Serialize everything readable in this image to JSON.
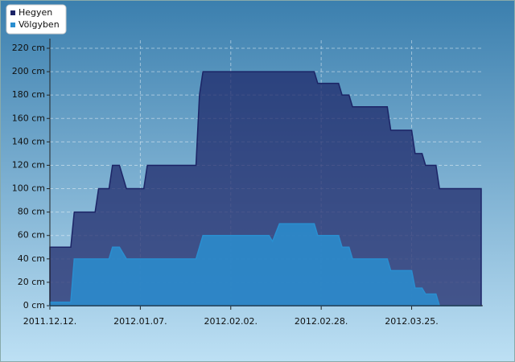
{
  "chart_data": {
    "type": "area",
    "x": [
      "2011.12.12.",
      "2011.12.18.",
      "2011.12.19.",
      "2011.12.25.",
      "2011.12.26.",
      "2011.12.29.",
      "2011.12.30.",
      "2012.01.01.",
      "2012.01.03.",
      "2012.01.08.",
      "2012.01.09.",
      "2012.01.23.",
      "2012.01.24.",
      "2012.01.25.",
      "2012.02.13.",
      "2012.02.14.",
      "2012.02.16.",
      "2012.02.26.",
      "2012.02.27.",
      "2012.03.04.",
      "2012.03.05.",
      "2012.03.07.",
      "2012.03.08.",
      "2012.03.18.",
      "2012.03.19.",
      "2012.03.25.",
      "2012.03.26.",
      "2012.03.28.",
      "2012.03.29.",
      "2012.04.01.",
      "2012.04.02.",
      "2012.04.14."
    ],
    "series": [
      {
        "name": "Hegyen",
        "color": "#1c2466",
        "values": [
          50,
          50,
          80,
          80,
          100,
          100,
          120,
          120,
          100,
          100,
          120,
          120,
          180,
          200,
          200,
          200,
          200,
          200,
          190,
          190,
          180,
          180,
          170,
          170,
          150,
          150,
          130,
          130,
          120,
          120,
          100,
          100
        ]
      },
      {
        "name": "Völgyben",
        "color": "#2a8ed0",
        "values": [
          3,
          3,
          40,
          40,
          40,
          40,
          50,
          50,
          40,
          40,
          40,
          40,
          50,
          60,
          60,
          55,
          70,
          70,
          60,
          60,
          50,
          50,
          40,
          40,
          30,
          30,
          15,
          15,
          10,
          10,
          0,
          0
        ]
      }
    ],
    "xlim": [
      "2011.12.12.",
      "2012.04.14."
    ],
    "xticks": [
      "2011.12.12.",
      "2012.01.07.",
      "2012.02.02.",
      "2012.02.28.",
      "2012.03.25."
    ],
    "ylim": [
      0,
      220
    ],
    "yticks": [
      {
        "value": 0,
        "label": "0 cm"
      },
      {
        "value": 20,
        "label": "20 cm"
      },
      {
        "value": 40,
        "label": "40 cm"
      },
      {
        "value": 60,
        "label": "60 cm"
      },
      {
        "value": 80,
        "label": "80 cm"
      },
      {
        "value": 100,
        "label": "100 cm"
      },
      {
        "value": 120,
        "label": "120 cm"
      },
      {
        "value": 140,
        "label": "140 cm"
      },
      {
        "value": 160,
        "label": "160 cm"
      },
      {
        "value": 180,
        "label": "180 cm"
      },
      {
        "value": 200,
        "label": "200 cm"
      },
      {
        "value": 220,
        "label": "220 cm"
      }
    ],
    "grid": true,
    "legend": "top-left"
  }
}
